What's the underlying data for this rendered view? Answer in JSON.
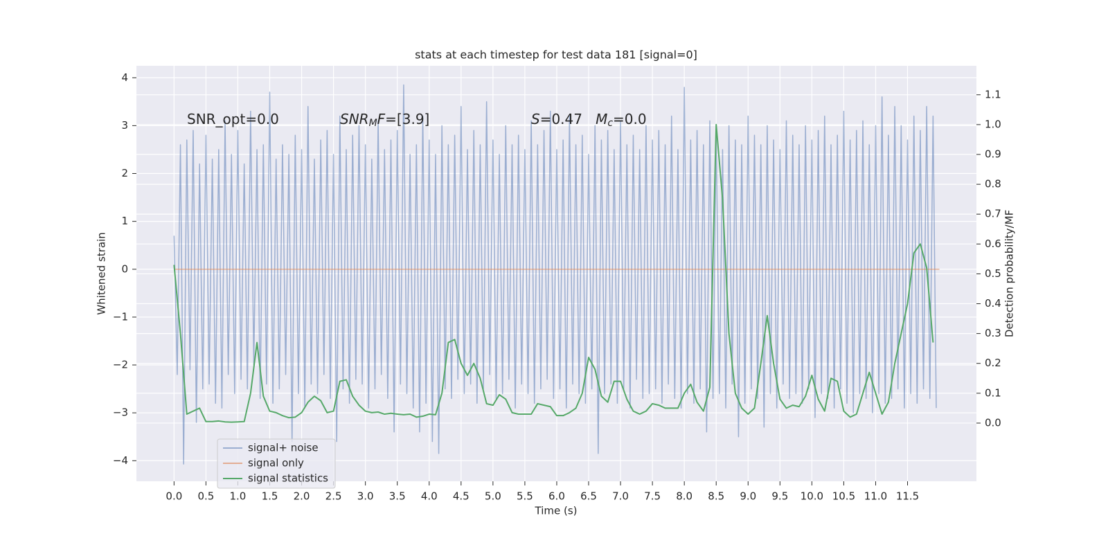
{
  "chart_data": {
    "type": "line",
    "title": "stats at each timestep for test data 181 [signal=0]",
    "xlabel": "Time (s)",
    "ylabel": "Whitened strain",
    "y2label": "Detection probability/MF",
    "annotations": [
      [
        {
          "text": "SNR_opt=0.0"
        }
      ],
      [
        {
          "text": "SNR",
          "italic": true
        },
        {
          "text": "M",
          "italic": true,
          "sub": true
        },
        {
          "text": "F",
          "italic": true
        },
        {
          "text": "=[3.9]"
        }
      ],
      [
        {
          "text": "S",
          "italic": true
        },
        {
          "text": "=0.47   "
        },
        {
          "text": "M",
          "italic": true
        },
        {
          "text": "c",
          "italic": true,
          "sub": true
        },
        {
          "text": "=0.0"
        }
      ]
    ],
    "xlim": [
      -0.59,
      12.58
    ],
    "ylim": [
      -4.43,
      4.25
    ],
    "y2lim": [
      -0.195,
      1.197
    ],
    "xticks": [
      {
        "value": 0,
        "label": "0.0"
      },
      {
        "value": 0.5,
        "label": "0.5"
      },
      {
        "value": 1,
        "label": "1.0"
      },
      {
        "value": 1.5,
        "label": "1.5"
      },
      {
        "value": 2,
        "label": "2.0"
      },
      {
        "value": 2.5,
        "label": "2.5"
      },
      {
        "value": 3,
        "label": "3.0"
      },
      {
        "value": 3.5,
        "label": "3.5"
      },
      {
        "value": 4,
        "label": "4.0"
      },
      {
        "value": 4.5,
        "label": "4.5"
      },
      {
        "value": 5,
        "label": "5.0"
      },
      {
        "value": 5.5,
        "label": "5.5"
      },
      {
        "value": 6,
        "label": "6.0"
      },
      {
        "value": 6.5,
        "label": "6.5"
      },
      {
        "value": 7,
        "label": "7.0"
      },
      {
        "value": 7.5,
        "label": "7.5"
      },
      {
        "value": 8,
        "label": "8.0"
      },
      {
        "value": 8.5,
        "label": "8.5"
      },
      {
        "value": 9,
        "label": "9.0"
      },
      {
        "value": 9.5,
        "label": "9.5"
      },
      {
        "value": 10,
        "label": "10.0"
      },
      {
        "value": 10.5,
        "label": "10.5"
      },
      {
        "value": 11,
        "label": "11.0"
      },
      {
        "value": 11.5,
        "label": "11.5"
      }
    ],
    "yticks": [
      {
        "value": -4,
        "label": "−4"
      },
      {
        "value": -3,
        "label": "−3"
      },
      {
        "value": -2,
        "label": "−2"
      },
      {
        "value": -1,
        "label": "−1"
      },
      0,
      1,
      2,
      3,
      4
    ],
    "y2ticks": [
      {
        "value": 0,
        "label": "0.0"
      },
      {
        "value": 0.1,
        "label": "0.1"
      },
      {
        "value": 0.2,
        "label": "0.2"
      },
      {
        "value": 0.3,
        "label": "0.3"
      },
      {
        "value": 0.4,
        "label": "0.4"
      },
      {
        "value": 0.5,
        "label": "0.5"
      },
      {
        "value": 0.6,
        "label": "0.6"
      },
      {
        "value": 0.7,
        "label": "0.7"
      },
      {
        "value": 0.8,
        "label": "0.8"
      },
      {
        "value": 0.9,
        "label": "0.9"
      },
      {
        "value": 1,
        "label": "1.0"
      },
      {
        "value": 1.1,
        "label": "1.1"
      }
    ],
    "grid": true,
    "legend_loc": "lower left",
    "series": [
      {
        "name": "signal+ noise",
        "color": "#4c72b0",
        "opacity": 0.5,
        "x": [
          0,
          0.05,
          0.1,
          0.15,
          0.2,
          0.25,
          0.3,
          0.35,
          0.4,
          0.45,
          0.5,
          0.55,
          0.6,
          0.65,
          0.7,
          0.75,
          0.8,
          0.85,
          0.9,
          0.95,
          1,
          1.05,
          1.1,
          1.15,
          1.2,
          1.25,
          1.3,
          1.35,
          1.4,
          1.45,
          1.5,
          1.55,
          1.6,
          1.65,
          1.7,
          1.75,
          1.8,
          1.85,
          1.9,
          1.95,
          2,
          2.05,
          2.1,
          2.15,
          2.2,
          2.25,
          2.3,
          2.35,
          2.4,
          2.45,
          2.5,
          2.55,
          2.6,
          2.65,
          2.7,
          2.75,
          2.8,
          2.85,
          2.9,
          2.95,
          3,
          3.05,
          3.1,
          3.15,
          3.2,
          3.25,
          3.3,
          3.35,
          3.4,
          3.45,
          3.5,
          3.55,
          3.6,
          3.65,
          3.7,
          3.75,
          3.8,
          3.85,
          3.9,
          3.95,
          4,
          4.05,
          4.1,
          4.15,
          4.2,
          4.25,
          4.3,
          4.35,
          4.4,
          4.45,
          4.5,
          4.55,
          4.6,
          4.65,
          4.7,
          4.75,
          4.8,
          4.85,
          4.9,
          4.95,
          5,
          5.05,
          5.1,
          5.15,
          5.2,
          5.25,
          5.3,
          5.35,
          5.4,
          5.45,
          5.5,
          5.55,
          5.6,
          5.65,
          5.7,
          5.75,
          5.8,
          5.85,
          5.9,
          5.95,
          6,
          6.05,
          6.1,
          6.15,
          6.2,
          6.25,
          6.3,
          6.35,
          6.4,
          6.45,
          6.5,
          6.55,
          6.6,
          6.65,
          6.7,
          6.75,
          6.8,
          6.85,
          6.9,
          6.95,
          7,
          7.05,
          7.1,
          7.15,
          7.2,
          7.25,
          7.3,
          7.35,
          7.4,
          7.45,
          7.5,
          7.55,
          7.6,
          7.65,
          7.7,
          7.75,
          7.8,
          7.85,
          7.9,
          7.95,
          8,
          8.05,
          8.1,
          8.15,
          8.2,
          8.25,
          8.3,
          8.35,
          8.4,
          8.45,
          8.5,
          8.55,
          8.6,
          8.65,
          8.7,
          8.75,
          8.8,
          8.85,
          8.9,
          8.95,
          9,
          9.05,
          9.1,
          9.15,
          9.2,
          9.25,
          9.3,
          9.35,
          9.4,
          9.45,
          9.5,
          9.55,
          9.6,
          9.65,
          9.7,
          9.75,
          9.8,
          9.85,
          9.9,
          9.95,
          10,
          10.05,
          10.1,
          10.15,
          10.2,
          10.25,
          10.3,
          10.35,
          10.4,
          10.45,
          10.5,
          10.55,
          10.6,
          10.65,
          10.7,
          10.75,
          10.8,
          10.85,
          10.9,
          10.95,
          11,
          11.05,
          11.1,
          11.15,
          11.2,
          11.25,
          11.3,
          11.35,
          11.4,
          11.45,
          11.5,
          11.55,
          11.6,
          11.65,
          11.7,
          11.75,
          11.8,
          11.85,
          11.9,
          11.95
        ],
        "values": [
          0.7,
          -2.2,
          2.6,
          -4.07,
          2.7,
          -2.1,
          2.9,
          -3.2,
          2.2,
          -2.5,
          2.8,
          -2.4,
          2.3,
          -2.8,
          2.5,
          -2.9,
          3.1,
          -2.2,
          2.4,
          -2.6,
          2.9,
          -2.3,
          2.2,
          -2.5,
          3.3,
          -2.0,
          2.5,
          -2.7,
          2.6,
          -2.4,
          3.7,
          -2.8,
          2.3,
          -2.5,
          2.6,
          -2.2,
          2.4,
          -3.6,
          2.8,
          -2.6,
          2.5,
          -2.9,
          3.4,
          -2.4,
          2.3,
          -2.6,
          2.7,
          -2.2,
          2.9,
          -2.7,
          2.4,
          -3.6,
          3.2,
          -2.5,
          2.5,
          -2.8,
          2.8,
          -2.3,
          3.0,
          -2.4,
          2.6,
          -2.9,
          2.3,
          -2.5,
          3.1,
          -2.2,
          2.5,
          -2.7,
          2.7,
          -3.4,
          2.9,
          -2.4,
          3.85,
          -2.6,
          2.4,
          -2.9,
          2.6,
          -3.4,
          3.2,
          -2.8,
          2.7,
          -3.6,
          2.4,
          -3.85,
          3.0,
          -2.5,
          2.6,
          -2.7,
          2.8,
          -2.3,
          3.4,
          -2.6,
          2.5,
          -2.4,
          2.9,
          -2.8,
          2.6,
          -2.5,
          3.5,
          -2.2,
          2.7,
          -2.7,
          2.4,
          -2.6,
          3.0,
          -2.3,
          2.6,
          -2.9,
          2.8,
          -2.4,
          2.5,
          -2.6,
          3.1,
          -2.8,
          2.6,
          -2.5,
          2.9,
          -2.3,
          3.3,
          -2.7,
          2.5,
          -2.5,
          2.7,
          -2.9,
          3.2,
          -2.4,
          2.6,
          -2.6,
          2.8,
          -2.8,
          2.4,
          -2.5,
          3.0,
          -3.85,
          2.7,
          -2.6,
          2.9,
          -2.4,
          2.5,
          -2.8,
          3.1,
          -2.5,
          2.6,
          -2.9,
          2.8,
          -2.3,
          2.5,
          -2.7,
          3.0,
          -2.6,
          2.7,
          -2.5,
          2.9,
          -2.8,
          2.6,
          -2.4,
          3.2,
          -2.7,
          2.5,
          -2.9,
          3.8,
          -2.6,
          2.7,
          -2.8,
          2.9,
          -2.5,
          2.6,
          -3.4,
          3.1,
          -2.7,
          2.8,
          -2.6,
          2.5,
          -2.9,
          3.0,
          -2.4,
          2.7,
          -3.5,
          2.6,
          -2.8,
          3.2,
          -2.5,
          2.8,
          -2.7,
          2.6,
          -3.3,
          3.0,
          -2.6,
          2.7,
          -2.9,
          2.5,
          -2.4,
          3.1,
          -2.7,
          2.8,
          -2.6,
          2.6,
          -2.8,
          3.0,
          -2.5,
          2.7,
          -3.1,
          2.9,
          -2.6,
          3.2,
          -2.7,
          2.6,
          -2.9,
          2.8,
          -2.5,
          3.3,
          -2.8,
          2.7,
          -3.0,
          2.9,
          -2.6,
          3.1,
          -2.7,
          2.6,
          -3.0,
          3.0,
          -2.6,
          3.6,
          -2.8,
          2.8,
          -2.7,
          3.4,
          -2.5,
          3.0,
          -2.9,
          2.7,
          -2.6,
          3.2,
          -2.8,
          2.9,
          -2.5,
          3.4,
          -2.7,
          3.2,
          -2.9
        ]
      },
      {
        "name": "signal only",
        "color": "#dd8452",
        "opacity": 0.6,
        "x": [
          0,
          12.0
        ],
        "values": [
          0,
          0
        ]
      },
      {
        "name": "signal statistics",
        "color": "#55a868",
        "opacity": 1,
        "axis": "y2",
        "x": [
          0,
          0.1,
          0.2,
          0.3,
          0.4,
          0.5,
          0.6,
          0.7,
          0.8,
          0.9,
          1,
          1.1,
          1.2,
          1.3,
          1.4,
          1.5,
          1.6,
          1.7,
          1.8,
          1.9,
          2,
          2.1,
          2.2,
          2.3,
          2.4,
          2.5,
          2.6,
          2.7,
          2.8,
          2.9,
          3,
          3.1,
          3.2,
          3.3,
          3.4,
          3.5,
          3.6,
          3.7,
          3.8,
          3.9,
          4,
          4.1,
          4.2,
          4.3,
          4.4,
          4.5,
          4.6,
          4.7,
          4.8,
          4.9,
          5,
          5.1,
          5.2,
          5.3,
          5.4,
          5.5,
          5.6,
          5.7,
          5.8,
          5.9,
          6,
          6.1,
          6.2,
          6.3,
          6.4,
          6.5,
          6.6,
          6.7,
          6.8,
          6.9,
          7,
          7.1,
          7.2,
          7.3,
          7.4,
          7.5,
          7.6,
          7.7,
          7.8,
          7.9,
          8,
          8.1,
          8.2,
          8.3,
          8.4,
          8.5,
          8.6,
          8.7,
          8.8,
          8.9,
          9,
          9.1,
          9.2,
          9.3,
          9.4,
          9.5,
          9.6,
          9.7,
          9.8,
          9.9,
          10,
          10.1,
          10.2,
          10.3,
          10.4,
          10.5,
          10.6,
          10.7,
          10.8,
          10.9,
          11,
          11.1,
          11.2,
          11.3,
          11.4,
          11.5,
          11.6,
          11.7,
          11.8,
          11.9
        ],
        "values": [
          0.53,
          0.3,
          0.03,
          0.04,
          0.05,
          0.005,
          0.005,
          0.007,
          0.004,
          0.003,
          0.004,
          0.005,
          0.1,
          0.27,
          0.09,
          0.04,
          0.035,
          0.025,
          0.018,
          0.02,
          0.035,
          0.07,
          0.09,
          0.075,
          0.035,
          0.04,
          0.14,
          0.145,
          0.09,
          0.06,
          0.04,
          0.035,
          0.037,
          0.03,
          0.033,
          0.03,
          0.028,
          0.03,
          0.02,
          0.023,
          0.03,
          0.028,
          0.1,
          0.27,
          0.28,
          0.2,
          0.16,
          0.2,
          0.15,
          0.065,
          0.06,
          0.095,
          0.08,
          0.035,
          0.03,
          0.03,
          0.03,
          0.065,
          0.06,
          0.055,
          0.025,
          0.025,
          0.035,
          0.05,
          0.1,
          0.22,
          0.18,
          0.09,
          0.07,
          0.14,
          0.14,
          0.08,
          0.04,
          0.03,
          0.04,
          0.065,
          0.06,
          0.05,
          0.05,
          0.05,
          0.1,
          0.13,
          0.07,
          0.04,
          0.12,
          1.0,
          0.75,
          0.3,
          0.1,
          0.05,
          0.03,
          0.05,
          0.2,
          0.36,
          0.2,
          0.08,
          0.05,
          0.06,
          0.055,
          0.09,
          0.16,
          0.08,
          0.04,
          0.15,
          0.14,
          0.04,
          0.02,
          0.03,
          0.1,
          0.17,
          0.1,
          0.03,
          0.07,
          0.2,
          0.3,
          0.4,
          0.57,
          0.6,
          0.52,
          0.27
        ]
      }
    ]
  }
}
